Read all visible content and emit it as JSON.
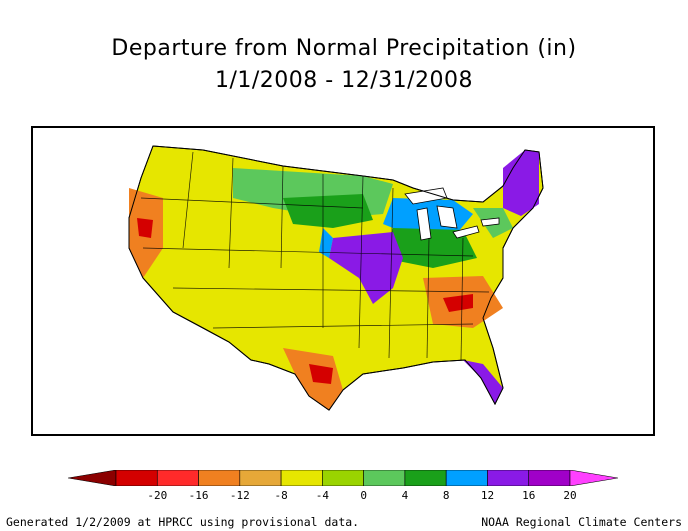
{
  "title": {
    "line1": "Departure from Normal Precipitation (in)",
    "line2": "1/1/2008 - 12/31/2008"
  },
  "legend": {
    "colors": [
      "#8b0000",
      "#d40000",
      "#ff2a2a",
      "#f08020",
      "#e6a838",
      "#e6e600",
      "#9ad400",
      "#5cc85c",
      "#1aa01a",
      "#00a0ff",
      "#8a1ae6",
      "#a000c8",
      "#ff40ff"
    ],
    "ticks": [
      "-20",
      "-16",
      "-12",
      "-8",
      "-4",
      "0",
      "4",
      "8",
      "12",
      "16",
      "20"
    ]
  },
  "map_regions": {
    "background": "#e6e600",
    "wet_core": "#8a1ae6",
    "wet": "#00a0ff",
    "moist": "#1aa01a",
    "slightly_moist": "#5cc85c",
    "dry": "#f08020",
    "very_dry": "#d40000"
  },
  "footer": {
    "left": "Generated 1/2/2009 at HPRCC using provisional data.",
    "right": "NOAA Regional Climate Centers"
  }
}
